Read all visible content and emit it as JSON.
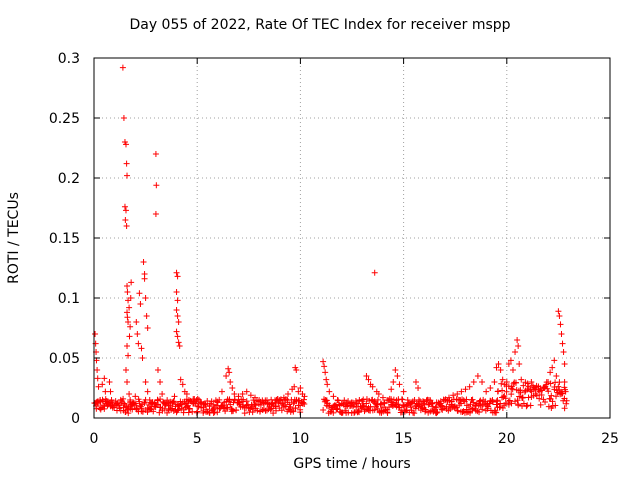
{
  "chart_data": {
    "type": "scatter",
    "title": "Day 055 of 2022, Rate Of TEC Index for receiver mspp",
    "xlabel": "GPS time / hours",
    "ylabel": "ROTI / TECUs",
    "xlim": [
      0,
      25
    ],
    "ylim": [
      0,
      0.3
    ],
    "x_ticks": [
      "0",
      "5",
      "10",
      "15",
      "20",
      "25"
    ],
    "y_ticks": [
      "0",
      "0.05",
      "0.1",
      "0.15",
      "0.2",
      "0.25",
      "0.3"
    ],
    "grid": true,
    "legend": "none",
    "marker": "+",
    "color": "#ff0000",
    "series": [
      {
        "points": [
          [
            0.05,
            0.07
          ],
          [
            0.08,
            0.062
          ],
          [
            0.1,
            0.055
          ],
          [
            0.12,
            0.048
          ],
          [
            0.15,
            0.04
          ],
          [
            0.18,
            0.033
          ],
          [
            0.22,
            0.026
          ],
          [
            0.1,
            0.01
          ],
          [
            0.3,
            0.015
          ],
          [
            0.4,
            0.028
          ],
          [
            0.5,
            0.033
          ],
          [
            0.55,
            0.022
          ],
          [
            0.6,
            0.012
          ],
          [
            0.75,
            0.03
          ],
          [
            0.8,
            0.022
          ],
          [
            0.85,
            0.015
          ],
          [
            0.9,
            0.01
          ],
          [
            1.4,
            0.292
          ],
          [
            1.45,
            0.25
          ],
          [
            1.5,
            0.23
          ],
          [
            1.55,
            0.228
          ],
          [
            1.58,
            0.212
          ],
          [
            1.6,
            0.202
          ],
          [
            1.5,
            0.176
          ],
          [
            1.55,
            0.173
          ],
          [
            1.52,
            0.165
          ],
          [
            1.58,
            0.16
          ],
          [
            1.6,
            0.11
          ],
          [
            1.62,
            0.105
          ],
          [
            1.65,
            0.098
          ],
          [
            1.6,
            0.088
          ],
          [
            1.62,
            0.084
          ],
          [
            1.65,
            0.08
          ],
          [
            1.7,
            0.092
          ],
          [
            1.75,
            0.076
          ],
          [
            1.72,
            0.068
          ],
          [
            1.6,
            0.06
          ],
          [
            1.65,
            0.052
          ],
          [
            1.8,
            0.113
          ],
          [
            1.78,
            0.1
          ],
          [
            1.55,
            0.04
          ],
          [
            1.6,
            0.03
          ],
          [
            1.7,
            0.02
          ],
          [
            1.75,
            0.015
          ],
          [
            1.8,
            0.01
          ],
          [
            1.9,
            0.013
          ],
          [
            2.0,
            0.018
          ],
          [
            2.05,
            0.08
          ],
          [
            2.1,
            0.07
          ],
          [
            2.15,
            0.062
          ],
          [
            2.2,
            0.104
          ],
          [
            2.25,
            0.095
          ],
          [
            2.3,
            0.058
          ],
          [
            2.35,
            0.05
          ],
          [
            2.4,
            0.13
          ],
          [
            2.45,
            0.12
          ],
          [
            2.45,
            0.116
          ],
          [
            2.5,
            0.1
          ],
          [
            2.55,
            0.085
          ],
          [
            2.6,
            0.075
          ],
          [
            2.5,
            0.03
          ],
          [
            2.6,
            0.022
          ],
          [
            2.7,
            0.015
          ],
          [
            2.8,
            0.012
          ],
          [
            3.0,
            0.22
          ],
          [
            3.02,
            0.194
          ],
          [
            3.0,
            0.17
          ],
          [
            3.1,
            0.04
          ],
          [
            3.2,
            0.03
          ],
          [
            3.3,
            0.02
          ],
          [
            3.5,
            0.012
          ],
          [
            3.7,
            0.01
          ],
          [
            3.9,
            0.018
          ],
          [
            4.0,
            0.121
          ],
          [
            4.05,
            0.118
          ],
          [
            4.0,
            0.105
          ],
          [
            4.05,
            0.098
          ],
          [
            4.0,
            0.09
          ],
          [
            4.05,
            0.085
          ],
          [
            4.1,
            0.08
          ],
          [
            4.0,
            0.072
          ],
          [
            4.05,
            0.068
          ],
          [
            4.1,
            0.063
          ],
          [
            4.15,
            0.06
          ],
          [
            4.2,
            0.032
          ],
          [
            4.3,
            0.028
          ],
          [
            4.4,
            0.022
          ],
          [
            4.5,
            0.02
          ],
          [
            4.6,
            0.015
          ],
          [
            4.8,
            0.012
          ],
          [
            5.0,
            0.01
          ],
          [
            5.2,
            0.012
          ],
          [
            5.4,
            0.011
          ],
          [
            5.6,
            0.01
          ],
          [
            5.8,
            0.011
          ],
          [
            6.0,
            0.013
          ],
          [
            6.2,
            0.022
          ],
          [
            6.4,
            0.035
          ],
          [
            6.5,
            0.041
          ],
          [
            6.55,
            0.038
          ],
          [
            6.6,
            0.03
          ],
          [
            6.7,
            0.025
          ],
          [
            6.8,
            0.02
          ],
          [
            7.0,
            0.018
          ],
          [
            7.2,
            0.02
          ],
          [
            7.4,
            0.022
          ],
          [
            7.6,
            0.019
          ],
          [
            7.8,
            0.017
          ],
          [
            8.0,
            0.015
          ],
          [
            8.2,
            0.013
          ],
          [
            8.4,
            0.012
          ],
          [
            8.6,
            0.011
          ],
          [
            8.8,
            0.013
          ],
          [
            9.0,
            0.015
          ],
          [
            9.2,
            0.017
          ],
          [
            9.4,
            0.02
          ],
          [
            9.6,
            0.024
          ],
          [
            9.7,
            0.026
          ],
          [
            9.75,
            0.042
          ],
          [
            9.8,
            0.04
          ],
          [
            9.9,
            0.022
          ],
          [
            10.0,
            0.025
          ],
          [
            10.1,
            0.02
          ],
          [
            10.2,
            0.018
          ],
          [
            11.1,
            0.047
          ],
          [
            11.15,
            0.043
          ],
          [
            11.2,
            0.038
          ],
          [
            11.25,
            0.032
          ],
          [
            11.3,
            0.028
          ],
          [
            11.4,
            0.022
          ],
          [
            11.6,
            0.018
          ],
          [
            11.8,
            0.015
          ],
          [
            12.0,
            0.012
          ],
          [
            12.2,
            0.011
          ],
          [
            12.4,
            0.01
          ],
          [
            12.6,
            0.011
          ],
          [
            12.8,
            0.012
          ],
          [
            13.0,
            0.014
          ],
          [
            13.2,
            0.035
          ],
          [
            13.3,
            0.032
          ],
          [
            13.4,
            0.028
          ],
          [
            13.5,
            0.026
          ],
          [
            13.6,
            0.121
          ],
          [
            13.7,
            0.022
          ],
          [
            13.8,
            0.02
          ],
          [
            14.0,
            0.017
          ],
          [
            14.2,
            0.015
          ],
          [
            14.4,
            0.024
          ],
          [
            14.5,
            0.03
          ],
          [
            14.6,
            0.04
          ],
          [
            14.7,
            0.035
          ],
          [
            14.8,
            0.028
          ],
          [
            15.0,
            0.022
          ],
          [
            15.2,
            0.015
          ],
          [
            15.4,
            0.013
          ],
          [
            15.6,
            0.03
          ],
          [
            15.7,
            0.025
          ],
          [
            15.8,
            0.014
          ],
          [
            16.0,
            0.012
          ],
          [
            16.2,
            0.011
          ],
          [
            16.4,
            0.012
          ],
          [
            16.6,
            0.013
          ],
          [
            16.8,
            0.014
          ],
          [
            17.0,
            0.015
          ],
          [
            17.2,
            0.017
          ],
          [
            17.4,
            0.019
          ],
          [
            17.6,
            0.02
          ],
          [
            17.8,
            0.022
          ],
          [
            18.0,
            0.024
          ],
          [
            18.2,
            0.026
          ],
          [
            18.4,
            0.03
          ],
          [
            18.6,
            0.035
          ],
          [
            18.8,
            0.03
          ],
          [
            19.0,
            0.022
          ],
          [
            19.2,
            0.025
          ],
          [
            19.4,
            0.03
          ],
          [
            19.5,
            0.042
          ],
          [
            19.6,
            0.045
          ],
          [
            19.7,
            0.04
          ],
          [
            19.8,
            0.032
          ],
          [
            19.9,
            0.028
          ],
          [
            20.0,
            0.03
          ],
          [
            20.1,
            0.045
          ],
          [
            20.2,
            0.048
          ],
          [
            20.3,
            0.04
          ],
          [
            20.4,
            0.055
          ],
          [
            20.5,
            0.065
          ],
          [
            20.55,
            0.06
          ],
          [
            20.6,
            0.045
          ],
          [
            20.7,
            0.032
          ],
          [
            20.8,
            0.027
          ],
          [
            21.0,
            0.024
          ],
          [
            21.2,
            0.022
          ],
          [
            21.4,
            0.02
          ],
          [
            21.6,
            0.022
          ],
          [
            21.8,
            0.025
          ],
          [
            22.0,
            0.03
          ],
          [
            22.1,
            0.038
          ],
          [
            22.2,
            0.042
          ],
          [
            22.3,
            0.048
          ],
          [
            22.4,
            0.035
          ],
          [
            22.5,
            0.089
          ],
          [
            22.55,
            0.085
          ],
          [
            22.6,
            0.078
          ],
          [
            22.65,
            0.07
          ],
          [
            22.7,
            0.062
          ],
          [
            22.75,
            0.055
          ],
          [
            22.8,
            0.045
          ],
          [
            22.8,
            0.03
          ],
          [
            22.85,
            0.022
          ]
        ],
        "band": [
          {
            "x": [
              0.0,
              1.4
            ],
            "y": [
              0.006,
              0.016
            ]
          },
          {
            "x": [
              1.4,
              10.2
            ],
            "y": [
              0.004,
              0.016
            ]
          },
          {
            "x": [
              11.1,
              19.5
            ],
            "y": [
              0.004,
              0.016
            ]
          },
          {
            "x": [
              19.5,
              22.9
            ],
            "y": [
              0.008,
              0.03
            ]
          }
        ]
      }
    ]
  }
}
